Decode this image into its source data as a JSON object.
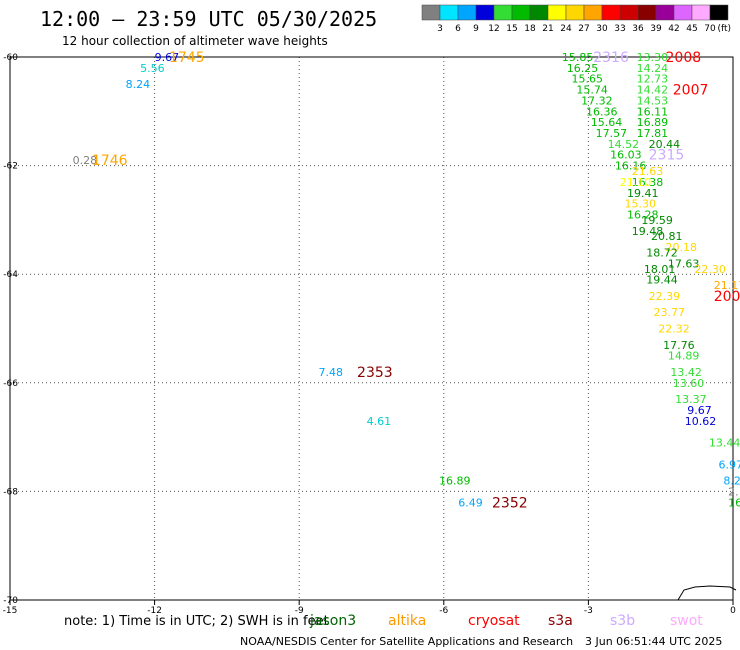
{
  "header": {
    "title": "12:00 – 23:59 UTC 05/30/2025",
    "subtitle": "12 hour collection of altimeter wave heights"
  },
  "color_scale": {
    "unit_label": "(ft)",
    "bins": [
      {
        "color": "#808080",
        "label": "3"
      },
      {
        "color": "#00e5ff",
        "label": "6"
      },
      {
        "color": "#00a5ff",
        "label": "9"
      },
      {
        "color": "#0000dd",
        "label": "12"
      },
      {
        "color": "#33dd33",
        "label": "15"
      },
      {
        "color": "#00bb00",
        "label": "18"
      },
      {
        "color": "#008800",
        "label": "21"
      },
      {
        "color": "#ffff00",
        "label": "24"
      },
      {
        "color": "#ffd700",
        "label": "27"
      },
      {
        "color": "#ffa500",
        "label": "30"
      },
      {
        "color": "#ff0000",
        "label": "33"
      },
      {
        "color": "#cc0000",
        "label": "36"
      },
      {
        "color": "#880000",
        "label": "39"
      },
      {
        "color": "#990099",
        "label": "42"
      },
      {
        "color": "#dd66ff",
        "label": "45"
      },
      {
        "color": "#ffaaff",
        "label": "70"
      },
      {
        "color": "#000000",
        "label": ""
      }
    ]
  },
  "chart_data": {
    "type": "scatter",
    "xlabel": "",
    "ylabel": "",
    "xlim": [
      -15,
      0
    ],
    "ylim": [
      -70,
      -60
    ],
    "x_ticks": [
      {
        "value": -15,
        "label": "-15"
      },
      {
        "value": -12,
        "label": "-12"
      },
      {
        "value": -9,
        "label": "-9"
      },
      {
        "value": -6,
        "label": "-6"
      },
      {
        "value": -3,
        "label": "-3"
      },
      {
        "value": 0,
        "label": "0"
      }
    ],
    "y_ticks": [
      {
        "value": -60,
        "label": "-60"
      },
      {
        "value": -62,
        "label": "-62"
      },
      {
        "value": -64,
        "label": "-64"
      },
      {
        "value": -66,
        "label": "-66"
      },
      {
        "value": -68,
        "label": "-68"
      },
      {
        "value": -70,
        "label": "-70"
      }
    ],
    "grid": true,
    "points": [
      {
        "lon": -12.0,
        "lat": -60.0,
        "text": "9.67",
        "color": "#0000dd"
      },
      {
        "lon": -12.3,
        "lat": -60.2,
        "text": "5.56",
        "color": "#00cccc"
      },
      {
        "lon": -12.6,
        "lat": -60.5,
        "text": "8.24",
        "color": "#00a5ff"
      },
      {
        "lon": -13.7,
        "lat": -61.9,
        "text": "0.28",
        "color": "#808080"
      },
      {
        "lon": -8.6,
        "lat": -65.8,
        "text": "7.48",
        "color": "#00a5ff"
      },
      {
        "lon": -7.6,
        "lat": -66.7,
        "text": "4.61",
        "color": "#00cccc"
      },
      {
        "lon": -6.1,
        "lat": -67.8,
        "text": "16.89",
        "color": "#00bb00"
      },
      {
        "lon": -5.7,
        "lat": -68.2,
        "text": "6.49",
        "color": "#00a5ff"
      },
      {
        "lon": -3.55,
        "lat": -60.0,
        "text": "15.85",
        "color": "#00bb00"
      },
      {
        "lon": -3.45,
        "lat": -60.2,
        "text": "16.25",
        "color": "#00bb00"
      },
      {
        "lon": -3.35,
        "lat": -60.4,
        "text": "15.65",
        "color": "#00bb00"
      },
      {
        "lon": -3.25,
        "lat": -60.6,
        "text": "15.74",
        "color": "#00bb00"
      },
      {
        "lon": -3.15,
        "lat": -60.8,
        "text": "17.32",
        "color": "#00bb00"
      },
      {
        "lon": -3.05,
        "lat": -61.0,
        "text": "16.36",
        "color": "#00bb00"
      },
      {
        "lon": -2.95,
        "lat": -61.2,
        "text": "15.64",
        "color": "#00bb00"
      },
      {
        "lon": -2.85,
        "lat": -61.4,
        "text": "17.57",
        "color": "#00bb00"
      },
      {
        "lon": -2.6,
        "lat": -61.6,
        "text": "14.52",
        "color": "#33dd33"
      },
      {
        "lon": -2.55,
        "lat": -61.8,
        "text": "16.03",
        "color": "#00bb00"
      },
      {
        "lon": -2.45,
        "lat": -62.0,
        "text": "16.16",
        "color": "#00bb00"
      },
      {
        "lon": -2.1,
        "lat": -62.3,
        "text": "16.38",
        "color": "#00bb00"
      },
      {
        "lon": -2.2,
        "lat": -62.5,
        "text": "19.41",
        "color": "#008800"
      },
      {
        "lon": -2.25,
        "lat": -62.7,
        "text": "15.30",
        "color": "#ffd700"
      },
      {
        "lon": -2.2,
        "lat": -62.9,
        "text": "16.28",
        "color": "#00bb00"
      },
      {
        "lon": -2.1,
        "lat": -63.2,
        "text": "19.48",
        "color": "#008800"
      },
      {
        "lon": -1.9,
        "lat": -63.0,
        "text": "19.59",
        "color": "#008800"
      },
      {
        "lon": -1.7,
        "lat": -63.3,
        "text": "20.81",
        "color": "#008800"
      },
      {
        "lon": -1.4,
        "lat": -63.5,
        "text": "20.18",
        "color": "#ffd700"
      },
      {
        "lon": -1.8,
        "lat": -63.6,
        "text": "18.72",
        "color": "#008800"
      },
      {
        "lon": -1.35,
        "lat": -63.8,
        "text": "17.63",
        "color": "#008800"
      },
      {
        "lon": -1.85,
        "lat": -63.9,
        "text": "18.01",
        "color": "#008800"
      },
      {
        "lon": -1.8,
        "lat": -64.1,
        "text": "19.44",
        "color": "#008800"
      },
      {
        "lon": -1.75,
        "lat": -64.4,
        "text": "22.39",
        "color": "#ffd700"
      },
      {
        "lon": -1.65,
        "lat": -64.7,
        "text": "23.77",
        "color": "#ffd700"
      },
      {
        "lon": -1.55,
        "lat": -65.0,
        "text": "22.32",
        "color": "#ffd700"
      },
      {
        "lon": -1.45,
        "lat": -65.3,
        "text": "17.76",
        "color": "#008800"
      },
      {
        "lon": -1.35,
        "lat": -65.5,
        "text": "14.89",
        "color": "#33dd33"
      },
      {
        "lon": -1.3,
        "lat": -65.8,
        "text": "13.42",
        "color": "#33dd33"
      },
      {
        "lon": -1.25,
        "lat": -66.0,
        "text": "13.60",
        "color": "#33dd33"
      },
      {
        "lon": -1.2,
        "lat": -66.3,
        "text": "13.37",
        "color": "#33dd33"
      },
      {
        "lon": -0.95,
        "lat": -66.5,
        "text": "9.67",
        "color": "#0000dd"
      },
      {
        "lon": -1.0,
        "lat": -66.7,
        "text": "10.62",
        "color": "#0000dd"
      },
      {
        "lon": -0.5,
        "lat": -67.1,
        "text": "13.44",
        "color": "#33dd33"
      },
      {
        "lon": -0.3,
        "lat": -67.5,
        "text": "6.97",
        "color": "#00a5ff"
      },
      {
        "lon": -0.2,
        "lat": -67.8,
        "text": "8.2",
        "color": "#00a5ff"
      },
      {
        "lon": -0.1,
        "lat": -68.0,
        "text": "2.",
        "color": "#808080"
      },
      {
        "lon": -0.1,
        "lat": -68.2,
        "text": "16",
        "color": "#00bb00"
      },
      {
        "lon": -2.0,
        "lat": -60.0,
        "text": "13.30",
        "color": "#33dd33"
      },
      {
        "lon": -2.0,
        "lat": -60.2,
        "text": "14.24",
        "color": "#33dd33"
      },
      {
        "lon": -2.0,
        "lat": -60.4,
        "text": "12.73",
        "color": "#33dd33"
      },
      {
        "lon": -2.0,
        "lat": -60.6,
        "text": "14.42",
        "color": "#33dd33"
      },
      {
        "lon": -2.0,
        "lat": -60.8,
        "text": "14.53",
        "color": "#33dd33"
      },
      {
        "lon": -2.0,
        "lat": -61.0,
        "text": "16.11",
        "color": "#00bb00"
      },
      {
        "lon": -2.0,
        "lat": -61.2,
        "text": "16.89",
        "color": "#00bb00"
      },
      {
        "lon": -2.0,
        "lat": -61.4,
        "text": "17.81",
        "color": "#00bb00"
      },
      {
        "lon": -1.75,
        "lat": -61.6,
        "text": "20.44",
        "color": "#008800"
      },
      {
        "lon": -2.1,
        "lat": -62.1,
        "text": "21.63",
        "color": "#ffd700"
      },
      {
        "lon": -2.35,
        "lat": -62.3,
        "text": "21.10",
        "color": "#ffff00"
      },
      {
        "lon": -0.8,
        "lat": -63.9,
        "text": "22.30",
        "color": "#ffd700"
      },
      {
        "lon": -0.4,
        "lat": -64.2,
        "text": "21.17",
        "color": "#ffa500"
      }
    ],
    "pass_labels": [
      {
        "lon": -11.7,
        "lat": -60.0,
        "text": "1745",
        "color": "#ffa500"
      },
      {
        "lon": -13.3,
        "lat": -61.9,
        "text": "1746",
        "color": "#ffa500"
      },
      {
        "lon": -7.8,
        "lat": -65.8,
        "text": "2353",
        "color": "#880000"
      },
      {
        "lon": -5.0,
        "lat": -68.2,
        "text": "2352",
        "color": "#880000"
      },
      {
        "lon": -2.9,
        "lat": -60.0,
        "text": "2316",
        "color": "#ccaaff"
      },
      {
        "lon": -1.4,
        "lat": -60.0,
        "text": "2008",
        "color": "#ff0000"
      },
      {
        "lon": -1.25,
        "lat": -60.6,
        "text": "2007",
        "color": "#ff0000"
      },
      {
        "lon": -1.75,
        "lat": -61.8,
        "text": "2315",
        "color": "#ccaaff"
      },
      {
        "lon": -0.4,
        "lat": -64.4,
        "text": "200",
        "color": "#ff0000"
      }
    ]
  },
  "notes": {
    "text": "note: 1) Time is in UTC; 2) SWH is in feet"
  },
  "satellites": [
    {
      "name": "jason3",
      "color": "#006400"
    },
    {
      "name": "altika",
      "color": "#ff9900"
    },
    {
      "name": "cryosat",
      "color": "#ff0000"
    },
    {
      "name": "s3a",
      "color": "#880000"
    },
    {
      "name": "s3b",
      "color": "#ccaaff"
    },
    {
      "name": "swot",
      "color": "#ffaaff"
    }
  ],
  "footer": {
    "credit": "NOAA/NESDIS Center for Satellite Applications and Research",
    "timestamp": "3 Jun 06:51:44 UTC 2025"
  }
}
